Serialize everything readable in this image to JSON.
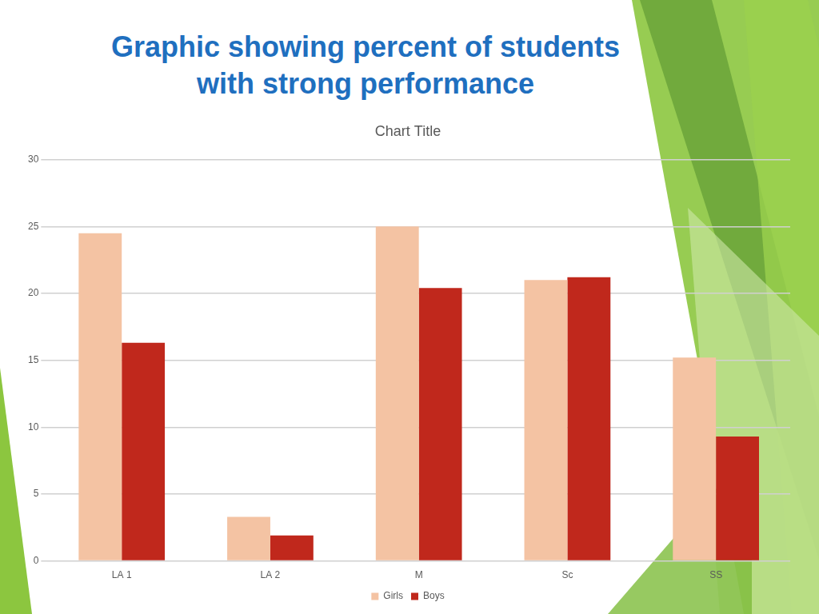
{
  "slide": {
    "title": "Graphic showing percent of students with strong performance"
  },
  "chart_data": {
    "type": "bar",
    "title": "Chart Title",
    "categories": [
      "LA 1",
      "LA 2",
      "M",
      "Sc",
      "SS"
    ],
    "series": [
      {
        "name": "Girls",
        "color": "#f4c3a3",
        "values": [
          24.5,
          3.3,
          25,
          21,
          15.2
        ]
      },
      {
        "name": "Boys",
        "color": "#c0281c",
        "values": [
          16.3,
          1.9,
          20.4,
          21.2,
          9.3
        ]
      }
    ],
    "ylim": [
      0,
      30
    ],
    "yticks": [
      0,
      5,
      10,
      15,
      20,
      25,
      30
    ],
    "grid": true,
    "legend": "bottom"
  }
}
